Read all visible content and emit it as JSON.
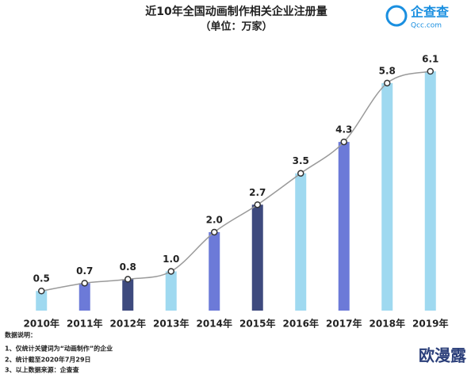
{
  "chart_data": {
    "type": "bar",
    "title": "近10年全国动画制作相关企业注册量",
    "subtitle": "（单位：万家）",
    "categories": [
      "2010年",
      "2011年",
      "2012年",
      "2013年",
      "2014年",
      "2015年",
      "2016年",
      "2017年",
      "2018年",
      "2019年"
    ],
    "values": [
      0.5,
      0.7,
      0.8,
      1.0,
      2.0,
      2.7,
      3.5,
      4.3,
      5.8,
      6.1
    ],
    "value_labels": [
      "0.5",
      "0.7",
      "0.8",
      "1.0",
      "2.0",
      "2.7",
      "3.5",
      "4.3",
      "5.8",
      "6.1"
    ],
    "colors": [
      "#9fd9f0",
      "#6c7ad8",
      "#3e4a7e",
      "#9fd9f0",
      "#6c7ad8",
      "#3e4a7e",
      "#9fd9f0",
      "#6c7ad8",
      "#9fd9f0",
      "#9fd9f0"
    ],
    "line_color": "#9a9a9a"
  },
  "logo": {
    "name": "企查查",
    "url": "Qcc.com"
  },
  "notes": {
    "heading": "数据说明：",
    "items": [
      "1、仅统计关键词为“动画制作”的企业",
      "2、统计截至2020年7月29日",
      "3、以上数据来源：企查查"
    ]
  },
  "watermark": "欧漫露"
}
